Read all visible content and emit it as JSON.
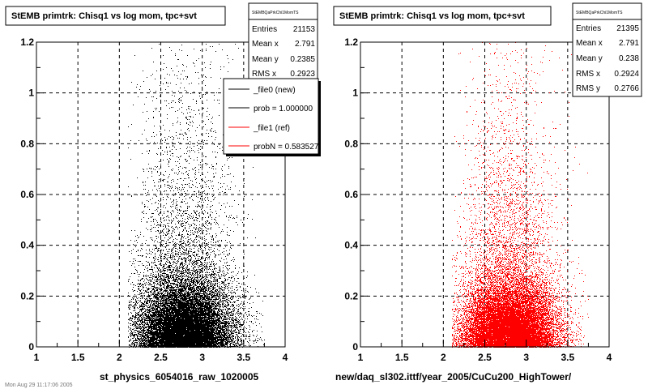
{
  "chart_data": [
    {
      "type": "scatter",
      "title": "StEMB primtrk: Chisq1 vs log mom, tpc+svt",
      "xlabel": "st_physics_6054016_raw_1020005",
      "ylabel": "",
      "xlim": [
        1,
        4
      ],
      "ylim": [
        0,
        1.2
      ],
      "x_ticks": [
        "1",
        "1.5",
        "2",
        "2.5",
        "3",
        "3.5",
        "4"
      ],
      "y_ticks": [
        "0",
        "0.2",
        "0.4",
        "0.6",
        "0.8",
        "1",
        "1.2"
      ],
      "grid": true,
      "marker_color": "#000000",
      "stats": {
        "name": "StEMBQaPrkChi1MomTS",
        "rows": [
          {
            "label": "Entries",
            "value": "21153"
          },
          {
            "label": "Mean x",
            "value": "2.791"
          },
          {
            "label": "Mean y",
            "value": "0.2385"
          },
          {
            "label": "RMS x",
            "value": "0.2923"
          }
        ]
      },
      "legend": {
        "placement": "top-right",
        "entries": [
          {
            "label": "_file0 (new)",
            "color": "#000000"
          },
          {
            "label": "prob = 1.000000",
            "color": "#000000"
          },
          {
            "label": "_file1 (ref)",
            "color": "#ff0000"
          },
          {
            "label": "probN = 0.583527",
            "color": "#ff0000"
          }
        ]
      },
      "distribution": {
        "entries": 21153,
        "mean_x": 2.791,
        "mean_y": 0.2385,
        "rms_x": 0.2923,
        "x_range": [
          2.1,
          3.75
        ],
        "y_range": [
          0,
          1.2
        ]
      }
    },
    {
      "type": "scatter",
      "title": "StEMB primtrk: Chisq1 vs log mom, tpc+svt",
      "xlabel": "new/daq_sl302.ittf/year_2005/CuCu200_HighTower/",
      "ylabel": "",
      "xlim": [
        1,
        4
      ],
      "ylim": [
        0,
        1.2
      ],
      "x_ticks": [
        "1",
        "1.5",
        "2",
        "2.5",
        "3",
        "3.5",
        "4"
      ],
      "y_ticks": [
        "0",
        "0.2",
        "0.4",
        "0.6",
        "0.8",
        "1",
        "1.2"
      ],
      "grid": true,
      "marker_color": "#ff0000",
      "stats": {
        "name": "StEMBQaPrkChi1MomTS",
        "rows": [
          {
            "label": "Entries",
            "value": "21395"
          },
          {
            "label": "Mean x",
            "value": "2.791"
          },
          {
            "label": "Mean y",
            "value": "0.238"
          },
          {
            "label": "RMS x",
            "value": "0.2924"
          },
          {
            "label": "RMS y",
            "value": "0.2766"
          }
        ]
      },
      "distribution": {
        "entries": 21395,
        "mean_x": 2.791,
        "mean_y": 0.238,
        "rms_x": 0.2924,
        "rms_y": 0.2766,
        "x_range": [
          2.1,
          3.75
        ],
        "y_range": [
          0,
          1.2
        ]
      }
    }
  ],
  "footer": {
    "text": "Mon Aug 29 11:17:06 2005"
  }
}
